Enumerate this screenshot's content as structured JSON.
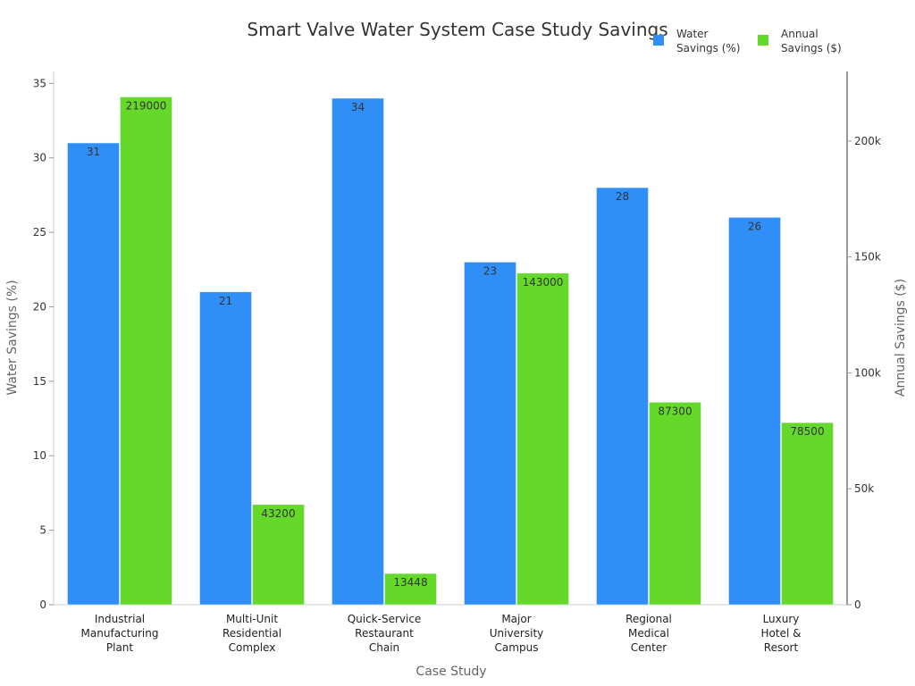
{
  "chart_data": {
    "type": "bar",
    "title": "Smart Valve Water System Case Study Savings",
    "xlabel": "Case Study",
    "ylabel": "Water Savings (%)",
    "y2label": "Annual Savings ($)",
    "categories": [
      [
        "Industrial",
        "Manufacturing",
        "Plant"
      ],
      [
        "Multi-Unit",
        "Residential",
        "Complex"
      ],
      [
        "Quick-Service",
        "Restaurant",
        "Chain"
      ],
      [
        "Major",
        "University",
        "Campus"
      ],
      [
        "Regional",
        "Medical",
        "Center"
      ],
      [
        "Luxury",
        "Hotel &",
        "Resort"
      ]
    ],
    "series": [
      {
        "name": "Water Savings (%)",
        "axis": "left",
        "color": "#2f8ff7",
        "values": [
          31,
          21,
          34,
          23,
          28,
          26
        ],
        "labels": [
          "31",
          "21",
          "34",
          "23",
          "28",
          "26"
        ]
      },
      {
        "name": "Annual Savings ($)",
        "axis": "right",
        "color": "#64d929",
        "values": [
          219000,
          43200,
          13448,
          143000,
          87300,
          78500
        ],
        "labels": [
          "219000",
          "43200",
          "13448",
          "143000",
          "87300",
          "78500"
        ]
      }
    ],
    "ylim": [
      0,
      35.8
    ],
    "y2lim": [
      0,
      230000
    ],
    "yticks": [
      "0",
      "5",
      "10",
      "15",
      "20",
      "25",
      "30",
      "35"
    ],
    "y2ticks": [
      "0",
      "50k",
      "100k",
      "150k",
      "200k"
    ],
    "legend": {
      "placement": "top-right",
      "entries": [
        [
          "Water",
          "Savings (%)"
        ],
        [
          "Annual",
          "Savings ($)"
        ]
      ]
    },
    "grid": false
  }
}
